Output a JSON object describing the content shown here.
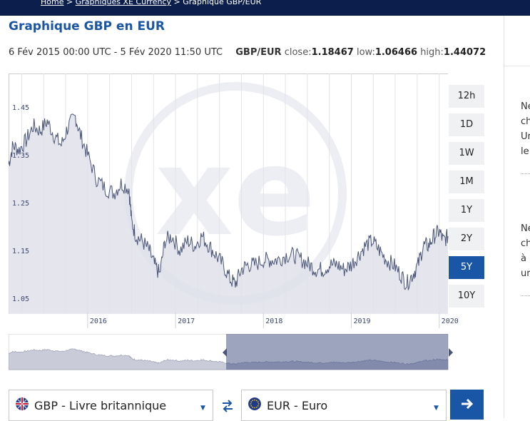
{
  "breadcrumb": {
    "home": "Home",
    "sep1": ">",
    "charts": "Graphiques XE Currency",
    "sep2": ">",
    "current": "Graphique GBP/EUR"
  },
  "title": "Graphique GBP en EUR",
  "info": {
    "range": "6 Fév 2015 00:00 UTC - 5 Fév 2020 11:50 UTC",
    "pair": "GBP/EUR",
    "close_label": "close:",
    "close_value": "1.18467",
    "low_label": "low:",
    "low_value": "1.06466",
    "high_label": "high:",
    "high_value": "1.44072"
  },
  "range_buttons": [
    "12h",
    "1D",
    "1W",
    "1M",
    "1Y",
    "2Y",
    "5Y",
    "10Y"
  ],
  "active_range": "5Y",
  "selectors": {
    "from": "GBP - Livre britannique",
    "to": "EUR - Euro"
  },
  "side_text": {
    "block1": [
      "Ne",
      "ch",
      "Ur",
      "le"
    ],
    "block2": [
      "Ne",
      "ch",
      "à",
      "ur"
    ]
  },
  "colors": {
    "accent": "#1a56a6",
    "header_bg": "#0c1e4b",
    "line": "#4a5577",
    "area_fill": "#dfe1ea"
  },
  "chart_data": {
    "type": "area",
    "title": "",
    "xlabel": "",
    "ylabel": "",
    "ylim": [
      1.02,
      1.52
    ],
    "y_ticks": [
      1.05,
      1.15,
      1.25,
      1.35,
      1.45
    ],
    "x_ticks": [
      "2016",
      "2017",
      "2018",
      "2019",
      "2020"
    ],
    "series": [
      {
        "values": [
          [
            2015.1,
            1.33
          ],
          [
            2015.15,
            1.37
          ],
          [
            2015.22,
            1.36
          ],
          [
            2015.3,
            1.38
          ],
          [
            2015.38,
            1.41
          ],
          [
            2015.46,
            1.4
          ],
          [
            2015.54,
            1.42
          ],
          [
            2015.62,
            1.39
          ],
          [
            2015.7,
            1.37
          ],
          [
            2015.78,
            1.41
          ],
          [
            2015.86,
            1.43
          ],
          [
            2015.92,
            1.39
          ],
          [
            2016.0,
            1.35
          ],
          [
            2016.1,
            1.3
          ],
          [
            2016.2,
            1.28
          ],
          [
            2016.3,
            1.27
          ],
          [
            2016.38,
            1.29
          ],
          [
            2016.47,
            1.28
          ],
          [
            2016.5,
            1.21
          ],
          [
            2016.55,
            1.18
          ],
          [
            2016.62,
            1.17
          ],
          [
            2016.7,
            1.15
          ],
          [
            2016.76,
            1.12
          ],
          [
            2016.82,
            1.1
          ],
          [
            2016.88,
            1.17
          ],
          [
            2016.96,
            1.18
          ],
          [
            2017.05,
            1.15
          ],
          [
            2017.14,
            1.17
          ],
          [
            2017.22,
            1.16
          ],
          [
            2017.3,
            1.18
          ],
          [
            2017.38,
            1.16
          ],
          [
            2017.46,
            1.14
          ],
          [
            2017.54,
            1.12
          ],
          [
            2017.62,
            1.09
          ],
          [
            2017.68,
            1.08
          ],
          [
            2017.75,
            1.11
          ],
          [
            2017.82,
            1.12
          ],
          [
            2017.9,
            1.12
          ],
          [
            2018.0,
            1.13
          ],
          [
            2018.08,
            1.13
          ],
          [
            2018.16,
            1.13
          ],
          [
            2018.26,
            1.14
          ],
          [
            2018.35,
            1.14
          ],
          [
            2018.44,
            1.13
          ],
          [
            2018.52,
            1.12
          ],
          [
            2018.6,
            1.11
          ],
          [
            2018.68,
            1.11
          ],
          [
            2018.76,
            1.12
          ],
          [
            2018.84,
            1.12
          ],
          [
            2018.92,
            1.11
          ],
          [
            2019.0,
            1.12
          ],
          [
            2019.08,
            1.14
          ],
          [
            2019.16,
            1.16
          ],
          [
            2019.24,
            1.17
          ],
          [
            2019.32,
            1.15
          ],
          [
            2019.4,
            1.13
          ],
          [
            2019.48,
            1.12
          ],
          [
            2019.56,
            1.1
          ],
          [
            2019.63,
            1.08
          ],
          [
            2019.7,
            1.1
          ],
          [
            2019.76,
            1.12
          ],
          [
            2019.82,
            1.16
          ],
          [
            2019.88,
            1.16
          ],
          [
            2019.94,
            1.18
          ],
          [
            2020.0,
            1.19
          ],
          [
            2020.05,
            1.17
          ],
          [
            2020.1,
            1.18
          ]
        ]
      }
    ],
    "grid": true,
    "legend": "none"
  }
}
